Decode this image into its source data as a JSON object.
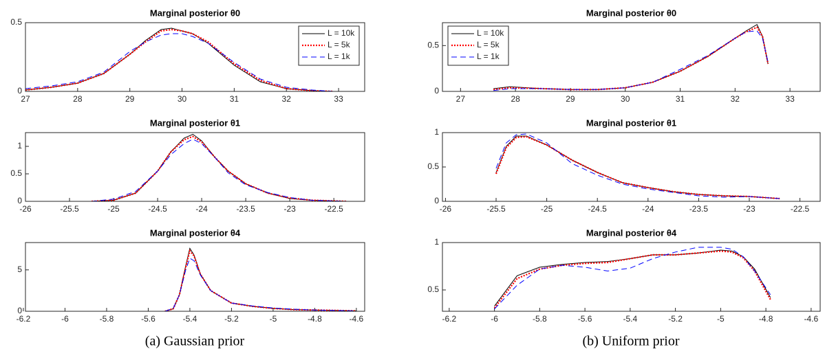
{
  "chart_data": [
    {
      "type": "line",
      "title": "Marginal posterior θ0",
      "legend": "upper right",
      "xlim": [
        27,
        33.5
      ],
      "xticks": [
        27,
        28,
        29,
        30,
        31,
        32,
        33
      ],
      "ylim": [
        0,
        0.5
      ],
      "yticks": [
        0,
        0.5
      ],
      "x": [
        27,
        27.5,
        28,
        28.5,
        29,
        29.3,
        29.6,
        29.8,
        30,
        30.2,
        30.5,
        31,
        31.5,
        32,
        32.5,
        32.9
      ],
      "series": [
        {
          "name": "L = 10k",
          "color": "#000000",
          "dash": "solid",
          "values": [
            0.01,
            0.03,
            0.06,
            0.13,
            0.27,
            0.37,
            0.45,
            0.46,
            0.44,
            0.42,
            0.35,
            0.19,
            0.07,
            0.02,
            0.005,
            0
          ]
        },
        {
          "name": "L = 5k",
          "color": "#ff0000",
          "dash": "dotted",
          "values": [
            0.01,
            0.03,
            0.06,
            0.13,
            0.27,
            0.36,
            0.44,
            0.45,
            0.44,
            0.42,
            0.36,
            0.2,
            0.08,
            0.02,
            0.005,
            0
          ]
        },
        {
          "name": "L = 1k",
          "color": "#0000ff",
          "dash": "dashed",
          "values": [
            0.02,
            0.04,
            0.07,
            0.14,
            0.29,
            0.36,
            0.41,
            0.42,
            0.42,
            0.4,
            0.35,
            0.21,
            0.09,
            0.03,
            0.01,
            0
          ]
        }
      ]
    },
    {
      "type": "line",
      "title": "Marginal posterior θ0",
      "legend": "upper left",
      "xlim": [
        26.67,
        33.55
      ],
      "xticks": [
        27,
        28,
        29,
        30,
        31,
        32,
        33
      ],
      "ylim": [
        0,
        0.75
      ],
      "yticks": [
        0,
        0.5
      ],
      "x": [
        27.6,
        27.9,
        28.5,
        29,
        29.5,
        30,
        30.5,
        31,
        31.5,
        32,
        32.2,
        32.4,
        32.5,
        32.6
      ],
      "series": [
        {
          "name": "L = 10k",
          "color": "#000000",
          "dash": "solid",
          "values": [
            0.03,
            0.05,
            0.03,
            0.02,
            0.02,
            0.04,
            0.1,
            0.22,
            0.38,
            0.58,
            0.66,
            0.73,
            0.6,
            0.3
          ]
        },
        {
          "name": "L = 5k",
          "color": "#ff0000",
          "dash": "dotted",
          "values": [
            0.02,
            0.04,
            0.03,
            0.02,
            0.02,
            0.04,
            0.1,
            0.22,
            0.38,
            0.58,
            0.65,
            0.7,
            0.6,
            0.3
          ]
        },
        {
          "name": "L = 1k",
          "color": "#0000ff",
          "dash": "dashed",
          "values": [
            0.01,
            0.03,
            0.03,
            0.02,
            0.02,
            0.04,
            0.1,
            0.24,
            0.39,
            0.58,
            0.65,
            0.66,
            0.58,
            0.32
          ]
        }
      ]
    },
    {
      "type": "line",
      "title": "Marginal posterior θ1",
      "xlim": [
        -26,
        -22.15
      ],
      "xticks": [
        -26,
        -25.5,
        -25,
        -24.5,
        -24,
        -23.5,
        -23,
        -22.5
      ],
      "ylim": [
        0,
        1.25
      ],
      "yticks": [
        0,
        0.5,
        1
      ],
      "x": [
        -25.25,
        -25,
        -24.75,
        -24.5,
        -24.35,
        -24.2,
        -24.1,
        -24,
        -23.85,
        -23.7,
        -23.5,
        -23.25,
        -23,
        -22.75,
        -22.35
      ],
      "series": [
        {
          "color": "#000000",
          "dash": "solid",
          "values": [
            0,
            0.02,
            0.15,
            0.55,
            0.9,
            1.15,
            1.22,
            1.1,
            0.8,
            0.55,
            0.32,
            0.15,
            0.05,
            0.02,
            0
          ]
        },
        {
          "color": "#ff0000",
          "dash": "dotted",
          "values": [
            0,
            0.02,
            0.15,
            0.55,
            0.9,
            1.12,
            1.18,
            1.08,
            0.8,
            0.55,
            0.32,
            0.15,
            0.06,
            0.02,
            0
          ]
        },
        {
          "color": "#0000ff",
          "dash": "dashed",
          "values": [
            0,
            0.04,
            0.18,
            0.55,
            0.85,
            1.05,
            1.13,
            1.05,
            0.8,
            0.52,
            0.3,
            0.16,
            0.07,
            0.02,
            0
          ]
        }
      ]
    },
    {
      "type": "line",
      "title": "Marginal posterior θ1",
      "xlim": [
        -26.03,
        -22.3
      ],
      "xticks": [
        -26,
        -25.5,
        -25,
        -24.5,
        -24,
        -23.5,
        -23,
        -22.5
      ],
      "ylim": [
        0,
        1
      ],
      "yticks": [
        0,
        0.5,
        1
      ],
      "x": [
        -25.5,
        -25.4,
        -25.3,
        -25.2,
        -25,
        -24.75,
        -24.5,
        -24.25,
        -24,
        -23.75,
        -23.5,
        -23.25,
        -23,
        -22.7
      ],
      "series": [
        {
          "color": "#000000",
          "dash": "solid",
          "values": [
            0.42,
            0.8,
            0.95,
            0.95,
            0.82,
            0.6,
            0.42,
            0.27,
            0.2,
            0.14,
            0.1,
            0.08,
            0.07,
            0.04
          ]
        },
        {
          "color": "#ff0000",
          "dash": "dotted",
          "values": [
            0.4,
            0.78,
            0.93,
            0.94,
            0.82,
            0.6,
            0.42,
            0.27,
            0.2,
            0.14,
            0.1,
            0.08,
            0.07,
            0.04
          ]
        },
        {
          "color": "#0000ff",
          "dash": "dashed",
          "values": [
            0.48,
            0.85,
            0.97,
            0.98,
            0.85,
            0.55,
            0.38,
            0.25,
            0.18,
            0.13,
            0.08,
            0.06,
            0.07,
            0.04
          ]
        }
      ]
    },
    {
      "type": "line",
      "title": "Marginal posterior θ4",
      "xlim": [
        -6.19,
        -4.56
      ],
      "xticks": [
        -6.2,
        -6,
        -5.8,
        -5.6,
        -5.4,
        -5.2,
        -5,
        -4.8,
        -4.6
      ],
      "ylim": [
        0,
        8.3
      ],
      "yticks": [
        0,
        5
      ],
      "x": [
        -5.52,
        -5.48,
        -5.45,
        -5.42,
        -5.4,
        -5.38,
        -5.35,
        -5.3,
        -5.2,
        -5.1,
        -5,
        -4.9,
        -4.8,
        -4.7,
        -4.6
      ],
      "series": [
        {
          "color": "#000000",
          "dash": "solid",
          "values": [
            0,
            0.3,
            2,
            5.5,
            7.6,
            6.8,
            4.5,
            2.5,
            1,
            0.6,
            0.35,
            0.2,
            0.15,
            0.1,
            0.05
          ]
        },
        {
          "color": "#ff0000",
          "dash": "dotted",
          "values": [
            0,
            0.3,
            2,
            5.3,
            7.3,
            6.7,
            4.5,
            2.5,
            1,
            0.6,
            0.35,
            0.2,
            0.15,
            0.1,
            0.05
          ]
        },
        {
          "color": "#0000ff",
          "dash": "dashed",
          "values": [
            0,
            0.35,
            2,
            5,
            6.4,
            6.1,
            4.4,
            2.5,
            1,
            0.65,
            0.4,
            0.25,
            0.15,
            0.1,
            0.05
          ]
        }
      ]
    },
    {
      "type": "line",
      "title": "Marginal posterior θ4",
      "xlim": [
        -6.23,
        -4.56
      ],
      "xticks": [
        -6.2,
        -6,
        -5.8,
        -5.6,
        -5.4,
        -5.2,
        -5,
        -4.8,
        -4.6
      ],
      "ylim": [
        0.275,
        1
      ],
      "yticks": [
        0.5,
        1
      ],
      "x": [
        -6,
        -5.9,
        -5.8,
        -5.7,
        -5.6,
        -5.5,
        -5.4,
        -5.3,
        -5.2,
        -5.1,
        -5,
        -4.95,
        -4.9,
        -4.85,
        -4.78
      ],
      "series": [
        {
          "color": "#000000",
          "dash": "solid",
          "values": [
            0.33,
            0.65,
            0.74,
            0.77,
            0.79,
            0.8,
            0.83,
            0.87,
            0.87,
            0.89,
            0.92,
            0.91,
            0.85,
            0.72,
            0.42
          ]
        },
        {
          "color": "#ff0000",
          "dash": "dotted",
          "values": [
            0.31,
            0.62,
            0.72,
            0.76,
            0.78,
            0.79,
            0.83,
            0.87,
            0.87,
            0.89,
            0.91,
            0.9,
            0.84,
            0.7,
            0.4
          ]
        },
        {
          "color": "#0000ff",
          "dash": "dashed",
          "values": [
            0.3,
            0.55,
            0.72,
            0.76,
            0.74,
            0.7,
            0.73,
            0.83,
            0.9,
            0.95,
            0.95,
            0.93,
            0.85,
            0.7,
            0.45
          ]
        }
      ]
    }
  ],
  "captions": [
    "(a) Gaussian prior",
    "(b) Uniform prior"
  ]
}
